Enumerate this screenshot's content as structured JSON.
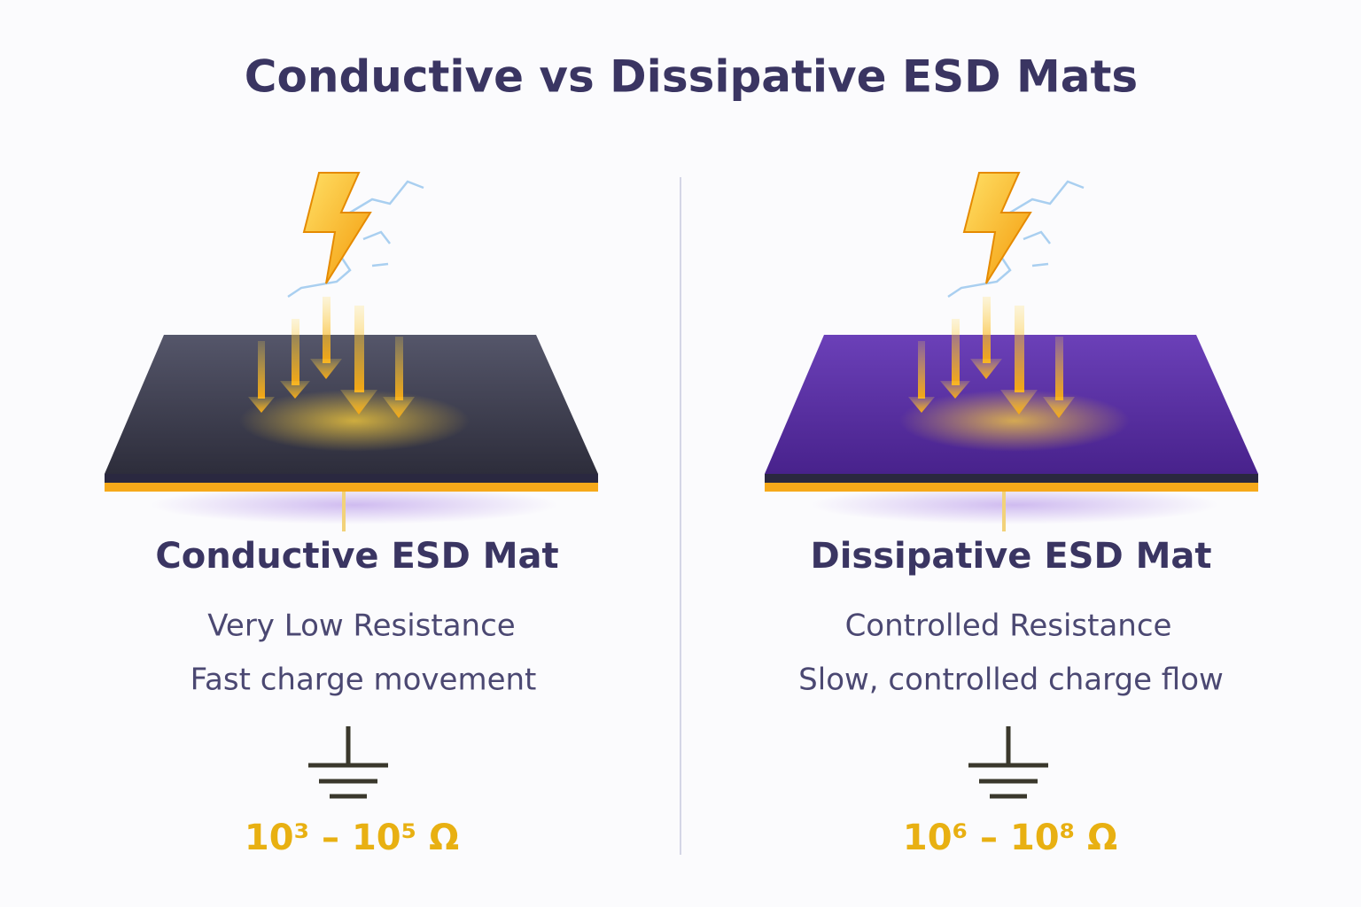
{
  "title": "Conductive vs Dissipative ESD Mats",
  "panels": [
    {
      "heading": "Conductive ESD Mat",
      "lines": [
        "Very Low Resistance",
        "Fast charge movement"
      ],
      "resistance": "10³ – 10⁵ Ω"
    },
    {
      "heading": "Dissipative ESD Mat",
      "lines": [
        "Controlled Resistance",
        "Slow, controlled charge flow"
      ],
      "resistance": "10⁶ – 10⁸ Ω"
    }
  ]
}
